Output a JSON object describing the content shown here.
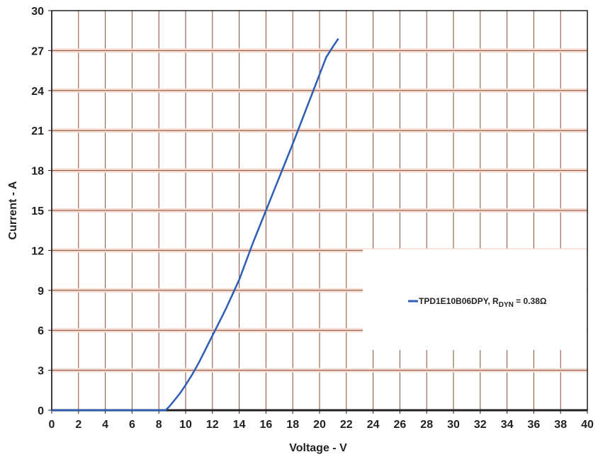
{
  "chart_data": {
    "type": "line",
    "title": "",
    "xlabel": "Voltage - V",
    "ylabel": "Current - A",
    "xlim": [
      0,
      40
    ],
    "ylim": [
      0,
      30
    ],
    "x_ticks": [
      0,
      2,
      4,
      6,
      8,
      10,
      12,
      14,
      16,
      18,
      20,
      22,
      24,
      26,
      28,
      30,
      32,
      34,
      36,
      38,
      40
    ],
    "y_ticks": [
      0,
      3,
      6,
      9,
      12,
      15,
      18,
      21,
      24,
      27,
      30
    ],
    "grid": true,
    "legend_position": "right",
    "legend": {
      "label_main": "TPD1E10B06DPY, R",
      "label_sub": "DYN",
      "label_tail": " = 0.38Ω"
    },
    "series": [
      {
        "name": "TPD1E10B06DPY, RDYN = 0.38Ω",
        "color": "#2e5db5",
        "x": [
          0,
          2,
          4,
          6,
          8,
          8.5,
          8.8,
          9.2,
          9.6,
          10,
          10.5,
          11,
          11.5,
          12,
          12.5,
          13,
          14,
          15,
          16,
          17,
          18,
          19,
          20,
          20.5,
          21,
          21.4
        ],
        "y": [
          0,
          0,
          0,
          0,
          0,
          0,
          0.3,
          0.8,
          1.3,
          1.9,
          2.7,
          3.6,
          4.6,
          5.6,
          6.6,
          7.6,
          9.8,
          12.5,
          15,
          17.5,
          20,
          22.6,
          25.2,
          26.5,
          27.3,
          27.9
        ]
      }
    ]
  }
}
